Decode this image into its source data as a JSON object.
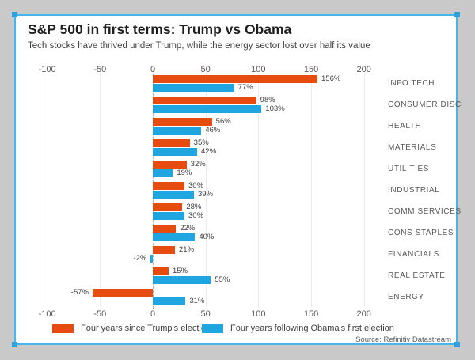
{
  "window": {
    "background": "#c9c9c9",
    "selection": {
      "border_color": "#45b5ea",
      "handle_color": "#2ba1e0"
    }
  },
  "chart_data": {
    "type": "bar",
    "orientation": "horizontal",
    "title": "S&P 500 in first terms: Trump vs Obama",
    "subtitle": "Tech stocks have thrived under Trump, while the energy sector lost over half its value",
    "categories": [
      "INFO TECH",
      "CONSUMER DISC",
      "HEALTH",
      "MATERIALS",
      "UTILITIES",
      "INDUSTRIAL",
      "COMM SERVICES",
      "CONS STAPLES",
      "FINANCIALS",
      "REAL ESTATE",
      "ENERGY"
    ],
    "series": [
      {
        "name": "Four years since Trump's election",
        "color": "#e64b0f",
        "values": [
          156,
          98,
          56,
          35,
          32,
          30,
          28,
          22,
          21,
          15,
          -57
        ]
      },
      {
        "name": "Four years following Obama's first election",
        "color": "#1fa6e0",
        "values": [
          77,
          103,
          46,
          42,
          19,
          39,
          30,
          40,
          -2,
          55,
          31
        ]
      }
    ],
    "value_suffix": "%",
    "x_ticks": [
      -100,
      -50,
      0,
      50,
      100,
      150,
      200
    ],
    "xlim": [
      -100,
      235
    ],
    "axis_positions": "top and bottom",
    "grid": true,
    "legend_position": "bottom",
    "source": "Source: Refinitiv Datastream"
  }
}
